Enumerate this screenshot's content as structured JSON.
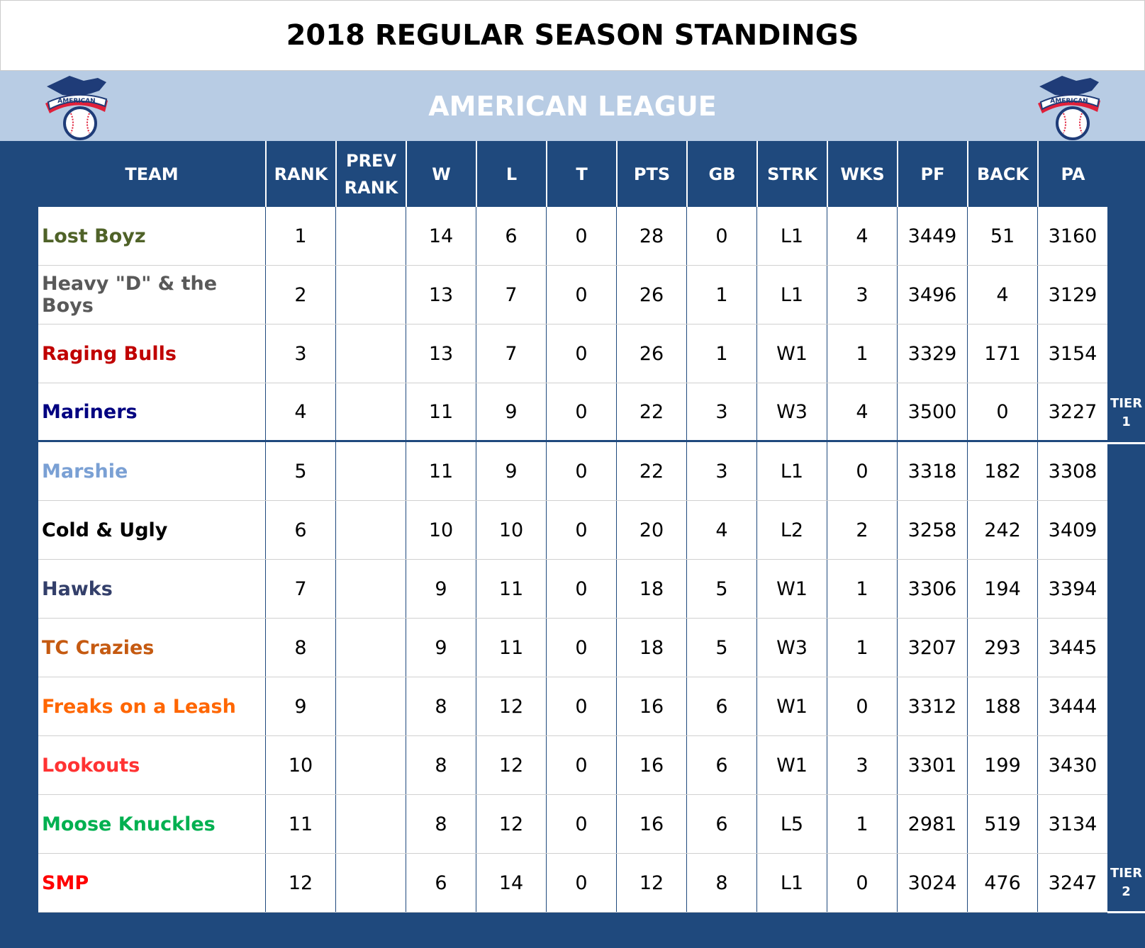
{
  "title": "2018 REGULAR SEASON STANDINGS",
  "league": "AMERICAN LEAGUE",
  "logo_text": "AMERICAN",
  "columns": [
    "TEAM",
    "RANK",
    "PREV RANK",
    "W",
    "L",
    "T",
    "PTS",
    "GB",
    "STRK",
    "WKS",
    "PF",
    "BACK",
    "PA"
  ],
  "tiers": [
    {
      "label": "TIER 1",
      "last_rank": 4
    },
    {
      "label": "TIER 2",
      "last_rank": 12
    }
  ],
  "teams": [
    {
      "name": "Lost Boyz",
      "color": "#4f6228",
      "rank": "1",
      "prev": "",
      "w": "14",
      "l": "6",
      "t": "0",
      "pts": "28",
      "gb": "0",
      "strk": "L1",
      "wks": "4",
      "pf": "3449",
      "back": "51",
      "pa": "3160"
    },
    {
      "name": "Heavy \"D\" & the Boys",
      "color": "#595959",
      "rank": "2",
      "prev": "",
      "w": "13",
      "l": "7",
      "t": "0",
      "pts": "26",
      "gb": "1",
      "strk": "L1",
      "wks": "3",
      "pf": "3496",
      "back": "4",
      "pa": "3129"
    },
    {
      "name": "Raging Bulls",
      "color": "#c00000",
      "rank": "3",
      "prev": "",
      "w": "13",
      "l": "7",
      "t": "0",
      "pts": "26",
      "gb": "1",
      "strk": "W1",
      "wks": "1",
      "pf": "3329",
      "back": "171",
      "pa": "3154"
    },
    {
      "name": "Mariners",
      "color": "#000080",
      "rank": "4",
      "prev": "",
      "w": "11",
      "l": "9",
      "t": "0",
      "pts": "22",
      "gb": "3",
      "strk": "W3",
      "wks": "4",
      "pf": "3500",
      "back": "0",
      "pa": "3227"
    },
    {
      "name": "Marshie",
      "color": "#7aa0d4",
      "rank": "5",
      "prev": "",
      "w": "11",
      "l": "9",
      "t": "0",
      "pts": "22",
      "gb": "3",
      "strk": "L1",
      "wks": "0",
      "pf": "3318",
      "back": "182",
      "pa": "3308"
    },
    {
      "name": "Cold & Ugly",
      "color": "#000000",
      "rank": "6",
      "prev": "",
      "w": "10",
      "l": "10",
      "t": "0",
      "pts": "20",
      "gb": "4",
      "strk": "L2",
      "wks": "2",
      "pf": "3258",
      "back": "242",
      "pa": "3409"
    },
    {
      "name": "Hawks",
      "color": "#333f6a",
      "rank": "7",
      "prev": "",
      "w": "9",
      "l": "11",
      "t": "0",
      "pts": "18",
      "gb": "5",
      "strk": "W1",
      "wks": "1",
      "pf": "3306",
      "back": "194",
      "pa": "3394"
    },
    {
      "name": "TC Crazies",
      "color": "#c55a11",
      "rank": "8",
      "prev": "",
      "w": "9",
      "l": "11",
      "t": "0",
      "pts": "18",
      "gb": "5",
      "strk": "W3",
      "wks": "1",
      "pf": "3207",
      "back": "293",
      "pa": "3445"
    },
    {
      "name": "Freaks on a Leash",
      "color": "#ff6600",
      "rank": "9",
      "prev": "",
      "w": "8",
      "l": "12",
      "t": "0",
      "pts": "16",
      "gb": "6",
      "strk": "W1",
      "wks": "0",
      "pf": "3312",
      "back": "188",
      "pa": "3444"
    },
    {
      "name": "Lookouts",
      "color": "#ff3333",
      "rank": "10",
      "prev": "",
      "w": "8",
      "l": "12",
      "t": "0",
      "pts": "16",
      "gb": "6",
      "strk": "W1",
      "wks": "3",
      "pf": "3301",
      "back": "199",
      "pa": "3430"
    },
    {
      "name": "Moose Knuckles",
      "color": "#00b050",
      "rank": "11",
      "prev": "",
      "w": "8",
      "l": "12",
      "t": "0",
      "pts": "16",
      "gb": "6",
      "strk": "L5",
      "wks": "1",
      "pf": "2981",
      "back": "519",
      "pa": "3134"
    },
    {
      "name": "SMP",
      "color": "#ff0000",
      "rank": "12",
      "prev": "",
      "w": "6",
      "l": "14",
      "t": "0",
      "pts": "12",
      "gb": "8",
      "strk": "L1",
      "wks": "0",
      "pf": "3024",
      "back": "476",
      "pa": "3247"
    }
  ]
}
